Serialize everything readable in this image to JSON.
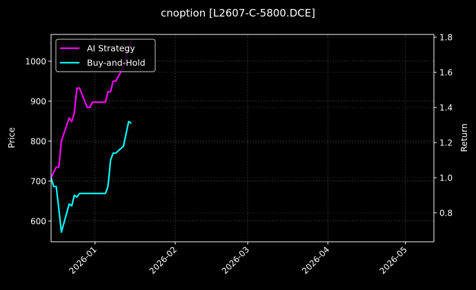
{
  "chart_data": {
    "type": "line",
    "title": "cnoption [L2607-C-5800.DCE]",
    "xlabel": "",
    "ylabel_left": "Price",
    "ylabel_right": "Return",
    "xlim": [
      "2025-12-15",
      "2026-05-12"
    ],
    "ylim_left": [
      548,
      1067
    ],
    "ylim_right": [
      0.635,
      1.816
    ],
    "grid": true,
    "legend_position": "top-left",
    "x_ticks": [
      "2026-01",
      "2026-02",
      "2026-03",
      "2026-04",
      "2026-05"
    ],
    "x_tick_dates": [
      "2026-01-01",
      "2026-02-01",
      "2026-03-01",
      "2026-04-01",
      "2026-05-01"
    ],
    "y_ticks_left": [
      600,
      700,
      800,
      900,
      1000
    ],
    "y_ticks_right": [
      0.8,
      1.0,
      1.2,
      1.4,
      1.6,
      1.8
    ],
    "series": [
      {
        "name": "AI Strategy",
        "color": "#ff00ff",
        "axis": "right",
        "x": [
          "2025-12-15",
          "2025-12-16",
          "2025-12-17",
          "2025-12-18",
          "2025-12-19",
          "2025-12-22",
          "2025-12-23",
          "2025-12-24",
          "2025-12-25",
          "2025-12-26",
          "2025-12-29",
          "2025-12-30",
          "2025-12-31",
          "2026-01-05",
          "2026-01-06",
          "2026-01-07",
          "2026-01-08",
          "2026-01-09",
          "2026-01-12",
          "2026-01-14",
          "2026-01-15"
        ],
        "values": [
          1.0,
          1.03,
          1.06,
          1.06,
          1.21,
          1.34,
          1.32,
          1.37,
          1.51,
          1.51,
          1.4,
          1.4,
          1.43,
          1.43,
          1.49,
          1.49,
          1.55,
          1.55,
          1.63,
          1.74,
          1.78
        ]
      },
      {
        "name": "Buy-and-Hold",
        "color": "#00ffff",
        "axis": "right",
        "x": [
          "2025-12-15",
          "2025-12-16",
          "2025-12-17",
          "2025-12-18",
          "2025-12-19",
          "2025-12-22",
          "2025-12-23",
          "2025-12-24",
          "2025-12-25",
          "2025-12-26",
          "2025-12-29",
          "2025-12-30",
          "2025-12-31",
          "2026-01-05",
          "2026-01-06",
          "2026-01-07",
          "2026-01-08",
          "2026-01-09",
          "2026-01-12",
          "2026-01-14",
          "2026-01-15"
        ],
        "values": [
          1.0,
          0.95,
          0.95,
          0.82,
          0.69,
          0.85,
          0.84,
          0.9,
          0.89,
          0.91,
          0.91,
          0.91,
          0.91,
          0.91,
          0.95,
          1.1,
          1.14,
          1.14,
          1.18,
          1.32,
          1.31
        ]
      }
    ]
  }
}
